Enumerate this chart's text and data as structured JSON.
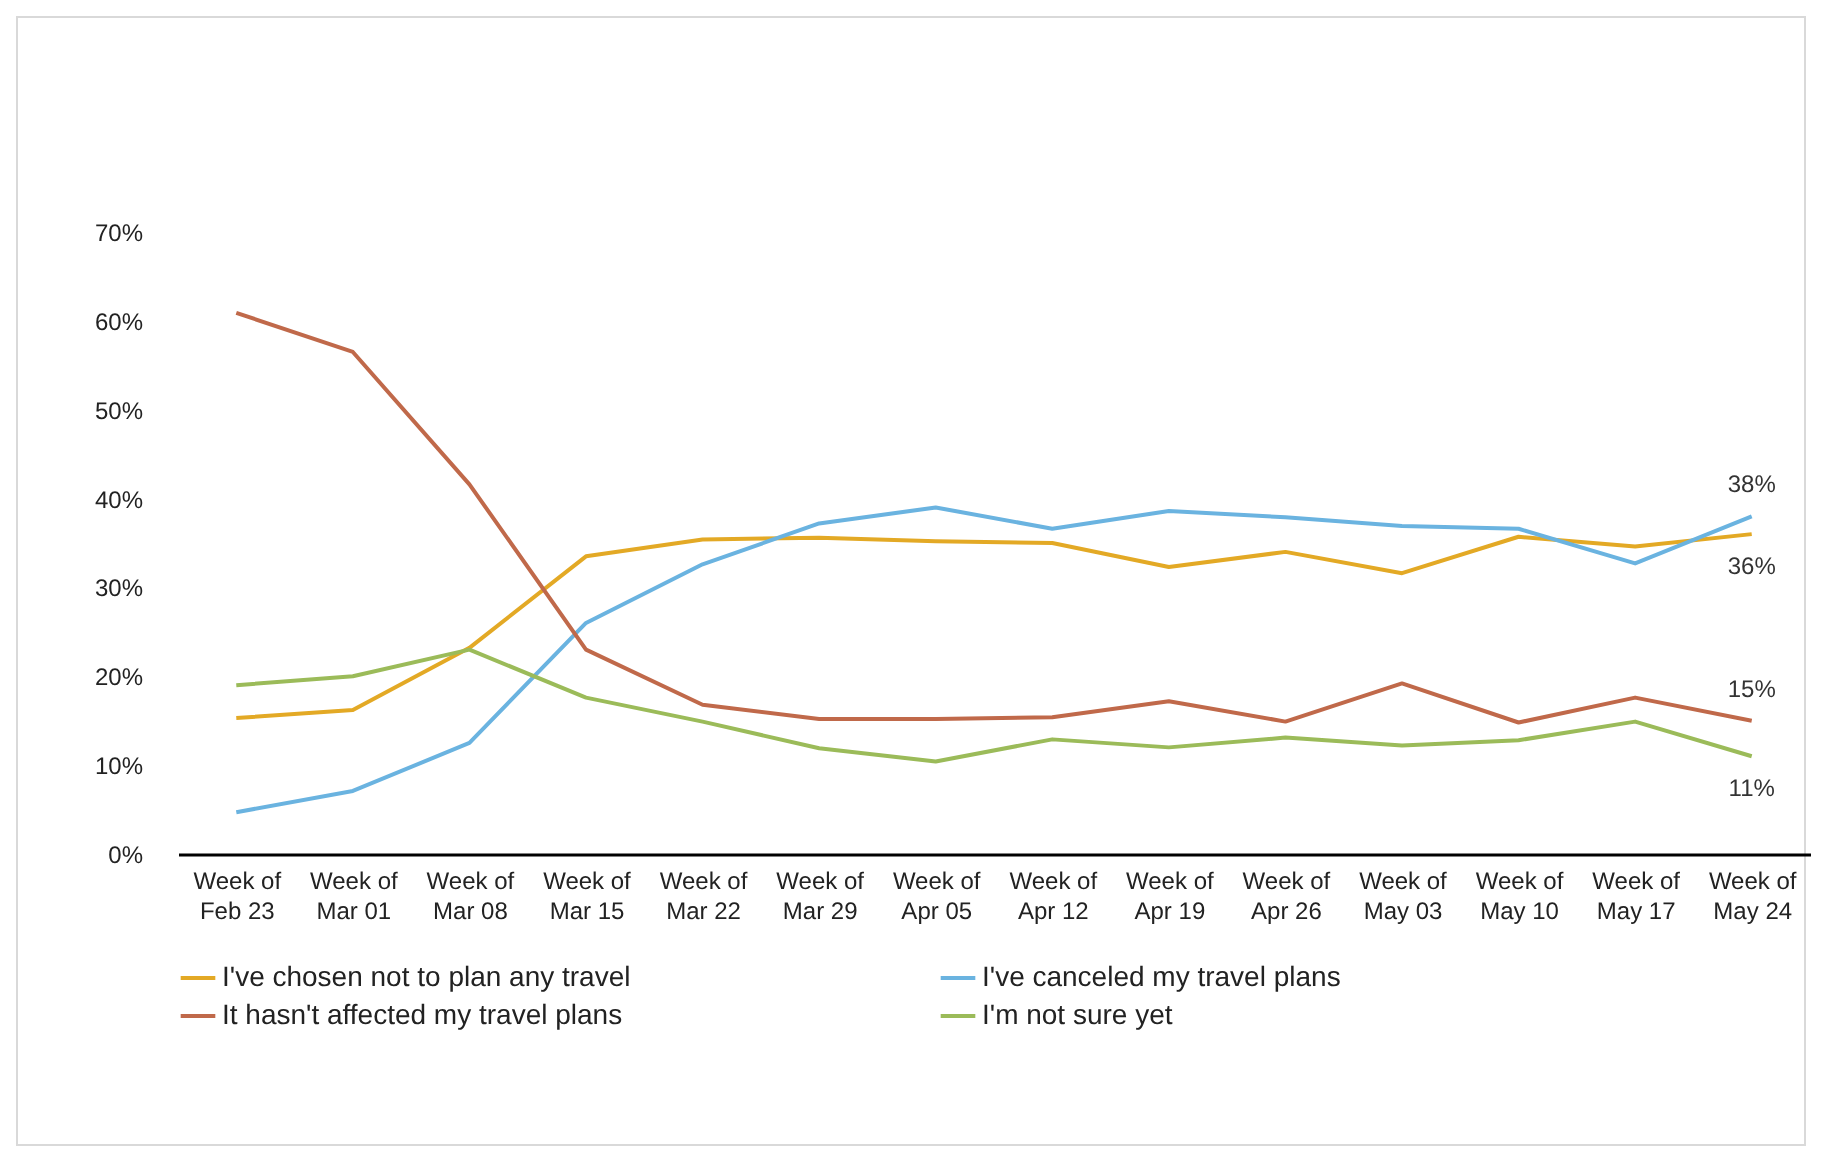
{
  "chart_data": {
    "type": "line",
    "categories": [
      "Week of\nFeb 23",
      "Week of\nMar 01",
      "Week of\nMar 08",
      "Week of\nMar 15",
      "Week of\nMar 22",
      "Week of\nMar 29",
      "Week of\nApr 05",
      "Week of\nApr 12",
      "Week of\nApr 19",
      "Week of\nApr 26",
      "Week of\nMay 03",
      "Week of\nMay 10",
      "Week of\nMay 17",
      "Week of\nMay 24"
    ],
    "series": [
      {
        "name": "I've chosen not to plan any travel",
        "color": "#e3a925",
        "values": [
          15.3,
          16.2,
          23.2,
          33.5,
          35.4,
          35.6,
          35.2,
          35.0,
          32.3,
          34.0,
          31.6,
          35.7,
          34.6,
          36.0
        ],
        "value_labels": [
          null,
          null,
          null,
          null,
          null,
          null,
          null,
          null,
          null,
          null,
          null,
          null,
          null,
          "36%"
        ]
      },
      {
        "name": "I've canceled my travel plans",
        "color": "#6ab3e0",
        "values": [
          4.7,
          7.1,
          12.5,
          26.0,
          32.6,
          37.2,
          39.0,
          36.6,
          38.6,
          37.9,
          36.9,
          36.6,
          32.7,
          38.0
        ],
        "value_labels": [
          null,
          null,
          null,
          null,
          null,
          null,
          null,
          null,
          null,
          null,
          null,
          null,
          null,
          "38%"
        ]
      },
      {
        "name": "It hasn't affected my travel plans",
        "color": "#c0694a",
        "values": [
          60.9,
          56.5,
          41.6,
          23.0,
          16.8,
          15.2,
          15.2,
          15.4,
          17.2,
          14.9,
          19.2,
          14.8,
          17.6,
          15.0
        ],
        "value_labels": [
          null,
          null,
          null,
          null,
          null,
          null,
          null,
          null,
          null,
          null,
          null,
          null,
          null,
          "15%"
        ]
      },
      {
        "name": "I'm not sure yet",
        "color": "#9bbb59",
        "values": [
          19.0,
          20.0,
          23.0,
          17.6,
          14.9,
          11.9,
          10.4,
          12.9,
          12.0,
          13.1,
          12.2,
          12.8,
          14.9,
          11.0
        ],
        "value_labels": [
          null,
          null,
          null,
          null,
          null,
          null,
          null,
          null,
          null,
          null,
          null,
          null,
          null,
          "11%"
        ]
      }
    ],
    "ylim": [
      0,
      70
    ],
    "yticks": [
      {
        "value": 0,
        "label": "0%"
      },
      {
        "value": 10,
        "label": "10%"
      },
      {
        "value": 20,
        "label": "20%"
      },
      {
        "value": 30,
        "label": "30%"
      },
      {
        "value": 40,
        "label": "40%"
      },
      {
        "value": 50,
        "label": "50%"
      },
      {
        "value": 60,
        "label": "60%"
      },
      {
        "value": 70,
        "label": "70%"
      }
    ],
    "grid": false,
    "legend": "bottom",
    "marker": "none",
    "line_style": "solid"
  }
}
